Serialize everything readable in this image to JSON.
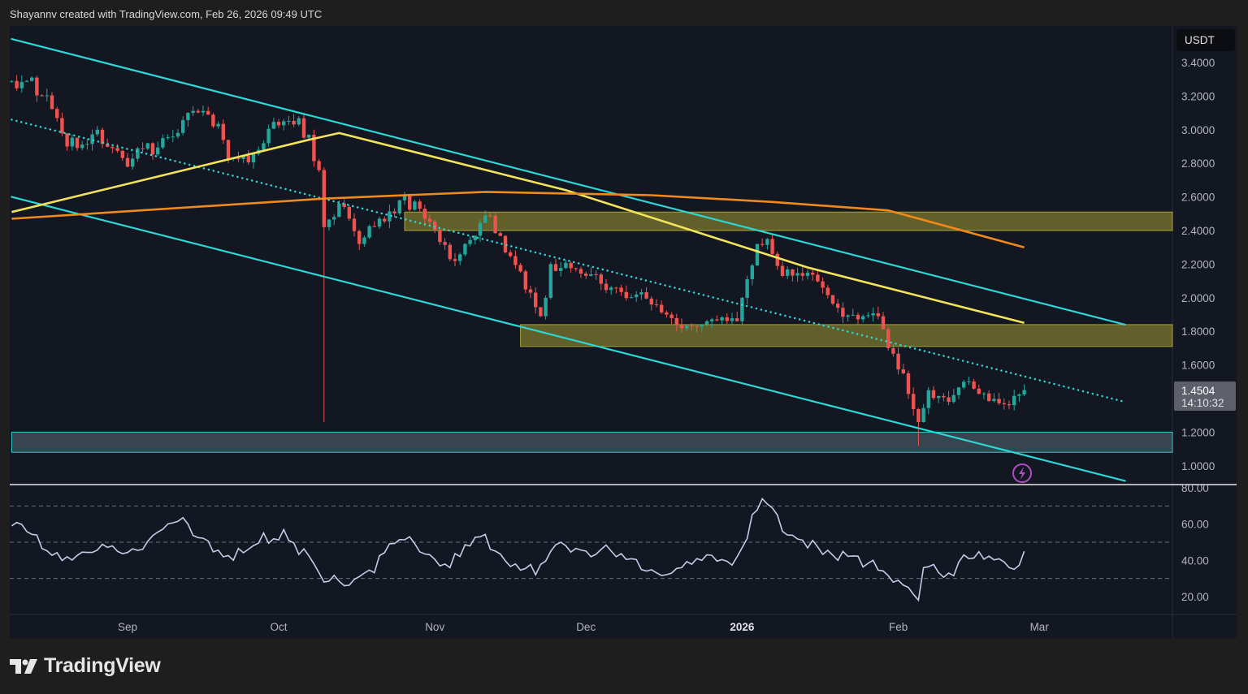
{
  "header": {
    "attribution": "Shayannv created with TradingView.com, Feb 26, 2026 09:49 UTC"
  },
  "footer": {
    "logo_text": "TradingView"
  },
  "colors": {
    "background": "#1e1e1e",
    "pane": "#131722",
    "up": "#26a69a",
    "down": "#ef5350",
    "channel": "#2fd6d6",
    "ma_fast": "#f3e35a",
    "ma_slow": "#f08a1c",
    "supply_zone": "#7d7a2e",
    "support_zone": "#3c4a56",
    "rsi": "#c5cbe8"
  },
  "chart_data": [
    {
      "type": "candlestick",
      "currency_label": "USDT",
      "y_ticks": [
        "3.4000",
        "3.2000",
        "3.0000",
        "2.8000",
        "2.6000",
        "2.4000",
        "2.2000",
        "2.0000",
        "1.8000",
        "1.6000",
        "1.2000",
        "1.0000"
      ],
      "x_ticks": [
        {
          "label": "Sep",
          "date": "2025-09-01"
        },
        {
          "label": "Oct",
          "date": "2025-10-01"
        },
        {
          "label": "Nov",
          "date": "2025-11-01"
        },
        {
          "label": "Dec",
          "date": "2025-12-01"
        },
        {
          "label": "2026",
          "date": "2026-01-01"
        },
        {
          "label": "Feb",
          "date": "2026-02-01"
        },
        {
          "label": "Mar",
          "date": "2026-03-01"
        }
      ],
      "ylim": [
        0.9,
        3.5
      ],
      "last_price": {
        "value": "1.4504",
        "countdown": "14:10:32"
      },
      "price_path": [
        {
          "date": "2025-08-09",
          "close": 3.29
        },
        {
          "date": "2025-08-13",
          "close": 3.31
        },
        {
          "date": "2025-08-20",
          "close": 2.9
        },
        {
          "date": "2025-08-26",
          "close": 3.0
        },
        {
          "date": "2025-09-01",
          "close": 2.78
        },
        {
          "date": "2025-09-08",
          "close": 2.95
        },
        {
          "date": "2025-09-13",
          "close": 3.1
        },
        {
          "date": "2025-09-18",
          "close": 3.02
        },
        {
          "date": "2025-09-22",
          "close": 2.83
        },
        {
          "date": "2025-09-27",
          "close": 2.88
        },
        {
          "date": "2025-10-02",
          "close": 3.05
        },
        {
          "date": "2025-10-07",
          "close": 2.97
        },
        {
          "date": "2025-10-09",
          "close": 2.76
        },
        {
          "date": "2025-10-10",
          "close": 2.42
        },
        {
          "date": "2025-10-13",
          "close": 2.56
        },
        {
          "date": "2025-10-17",
          "close": 2.32
        },
        {
          "date": "2025-10-21",
          "close": 2.47
        },
        {
          "date": "2025-10-26",
          "close": 2.61
        },
        {
          "date": "2025-10-30",
          "close": 2.47
        },
        {
          "date": "2025-11-04",
          "close": 2.23
        },
        {
          "date": "2025-11-07",
          "close": 2.32
        },
        {
          "date": "2025-11-11",
          "close": 2.49
        },
        {
          "date": "2025-11-15",
          "close": 2.27
        },
        {
          "date": "2025-11-20",
          "close": 2.03
        },
        {
          "date": "2025-11-22",
          "close": 1.89
        },
        {
          "date": "2025-11-24",
          "close": 2.2
        },
        {
          "date": "2025-12-01",
          "close": 2.13
        },
        {
          "date": "2025-12-07",
          "close": 2.06
        },
        {
          "date": "2025-12-14",
          "close": 1.96
        },
        {
          "date": "2025-12-19",
          "close": 1.84
        },
        {
          "date": "2025-12-25",
          "close": 1.86
        },
        {
          "date": "2025-12-31",
          "close": 1.86
        },
        {
          "date": "2026-01-04",
          "close": 2.32
        },
        {
          "date": "2026-01-06",
          "close": 2.35
        },
        {
          "date": "2026-01-09",
          "close": 2.13
        },
        {
          "date": "2026-01-13",
          "close": 2.13
        },
        {
          "date": "2026-01-17",
          "close": 2.06
        },
        {
          "date": "2026-01-20",
          "close": 1.94
        },
        {
          "date": "2026-01-25",
          "close": 1.89
        },
        {
          "date": "2026-01-28",
          "close": 1.89
        },
        {
          "date": "2026-01-30",
          "close": 1.7
        },
        {
          "date": "2026-02-02",
          "close": 1.55
        },
        {
          "date": "2026-02-05",
          "close": 1.26
        },
        {
          "date": "2026-02-07",
          "close": 1.45
        },
        {
          "date": "2026-02-11",
          "close": 1.38
        },
        {
          "date": "2026-02-14",
          "close": 1.5
        },
        {
          "date": "2026-02-18",
          "close": 1.43
        },
        {
          "date": "2026-02-23",
          "close": 1.36
        },
        {
          "date": "2026-02-26",
          "close": 1.45
        }
      ],
      "wick_lows": [
        {
          "date": "2025-10-10",
          "low": 1.26
        },
        {
          "date": "2026-02-05",
          "low": 1.12
        }
      ],
      "trendlines": [
        {
          "name": "channel-upper",
          "style": "solid",
          "from": {
            "date": "2025-08-09",
            "price": 3.54
          },
          "to": {
            "date": "2026-03-18",
            "price": 1.84
          }
        },
        {
          "name": "channel-mid",
          "style": "dotted",
          "from": {
            "date": "2025-08-09",
            "price": 3.06
          },
          "to": {
            "date": "2026-03-18",
            "price": 1.38
          }
        },
        {
          "name": "channel-lower",
          "style": "solid",
          "from": {
            "date": "2025-08-09",
            "price": 2.6
          },
          "to": {
            "date": "2026-03-18",
            "price": 0.91
          }
        }
      ],
      "moving_averages": [
        {
          "name": "ma-fast",
          "color": "#f3e35a",
          "points": [
            {
              "date": "2025-08-09",
              "price": 2.51
            },
            {
              "date": "2025-10-07",
              "price": 2.94
            },
            {
              "date": "2025-10-13",
              "price": 2.98
            },
            {
              "date": "2025-11-27",
              "price": 2.64
            },
            {
              "date": "2026-01-14",
              "price": 2.18
            },
            {
              "date": "2026-02-26",
              "price": 1.85
            }
          ]
        },
        {
          "name": "ma-slow",
          "color": "#f08a1c",
          "points": [
            {
              "date": "2025-08-09",
              "price": 2.47
            },
            {
              "date": "2025-10-10",
              "price": 2.59
            },
            {
              "date": "2025-11-11",
              "price": 2.63
            },
            {
              "date": "2025-12-14",
              "price": 2.61
            },
            {
              "date": "2026-01-07",
              "price": 2.57
            },
            {
              "date": "2026-01-30",
              "price": 2.52
            },
            {
              "date": "2026-02-26",
              "price": 2.3
            }
          ]
        }
      ],
      "zones": [
        {
          "name": "supply-zone-upper",
          "from": "2025-10-26",
          "top": 2.51,
          "bottom": 2.4
        },
        {
          "name": "supply-zone-lower",
          "from": "2025-11-18",
          "top": 1.84,
          "bottom": 1.71
        },
        {
          "name": "support-zone",
          "from": "2025-08-09",
          "top": 1.2,
          "bottom": 1.08
        }
      ]
    },
    {
      "type": "line",
      "indicator": "RSI",
      "y_ticks": [
        "80.00",
        "60.00",
        "40.00",
        "20.00"
      ],
      "levels": [
        70,
        50,
        30
      ],
      "ylim": [
        15,
        82
      ],
      "points": [
        {
          "date": "2025-08-09",
          "value": 59
        },
        {
          "date": "2025-08-20",
          "value": 42
        },
        {
          "date": "2025-08-30",
          "value": 45
        },
        {
          "date": "2025-09-13",
          "value": 60
        },
        {
          "date": "2025-09-22",
          "value": 40
        },
        {
          "date": "2025-10-02",
          "value": 57
        },
        {
          "date": "2025-10-10",
          "value": 28
        },
        {
          "date": "2025-10-17",
          "value": 31
        },
        {
          "date": "2025-10-27",
          "value": 53
        },
        {
          "date": "2025-11-04",
          "value": 36
        },
        {
          "date": "2025-11-10",
          "value": 53
        },
        {
          "date": "2025-11-21",
          "value": 32
        },
        {
          "date": "2025-11-26",
          "value": 50
        },
        {
          "date": "2025-12-07",
          "value": 42
        },
        {
          "date": "2025-12-18",
          "value": 33
        },
        {
          "date": "2025-12-24",
          "value": 40
        },
        {
          "date": "2025-12-31",
          "value": 42
        },
        {
          "date": "2026-01-05",
          "value": 74
        },
        {
          "date": "2026-01-09",
          "value": 56
        },
        {
          "date": "2026-01-15",
          "value": 51
        },
        {
          "date": "2026-01-20",
          "value": 40
        },
        {
          "date": "2026-01-27",
          "value": 40
        },
        {
          "date": "2026-02-01",
          "value": 29
        },
        {
          "date": "2026-02-05",
          "value": 18
        },
        {
          "date": "2026-02-06",
          "value": 36
        },
        {
          "date": "2026-02-11",
          "value": 33
        },
        {
          "date": "2026-02-14",
          "value": 43
        },
        {
          "date": "2026-02-23",
          "value": 36
        },
        {
          "date": "2026-02-26",
          "value": 45
        }
      ]
    }
  ]
}
